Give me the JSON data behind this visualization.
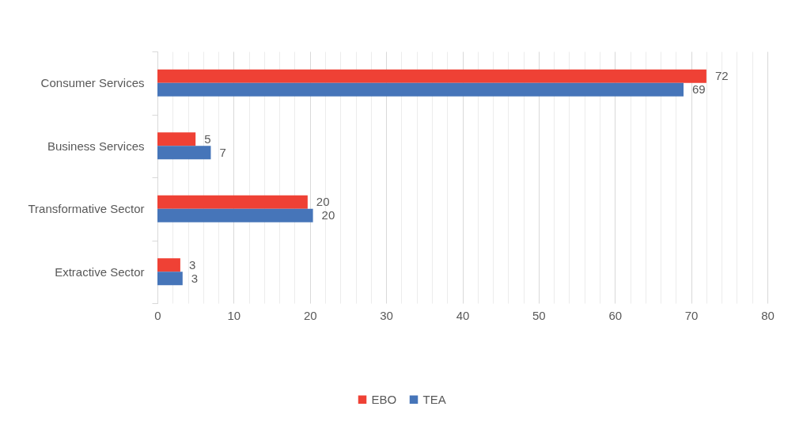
{
  "chart_data": {
    "type": "bar",
    "orientation": "horizontal",
    "categories": [
      "Consumer Services",
      "Business Services",
      "Transformative Sector",
      "Extractive Sector"
    ],
    "series": [
      {
        "name": "EBO",
        "color": "#ef4135",
        "values": [
          72,
          5,
          19.7,
          3
        ],
        "value_labels": [
          "72",
          "5",
          "20",
          "3"
        ]
      },
      {
        "name": "TEA",
        "color": "#4675b9",
        "values": [
          69,
          7,
          20.4,
          3.3
        ],
        "value_labels": [
          "69",
          "7",
          "20",
          "3"
        ]
      }
    ],
    "xlim": [
      0,
      80
    ],
    "xticks": [
      0,
      {
        "value": 2,
        "label": null
      },
      {
        "value": 4,
        "label": null
      },
      {
        "value": 6,
        "label": null
      },
      {
        "value": 8,
        "label": null
      },
      10,
      {
        "value": 12,
        "label": null
      },
      {
        "value": 14,
        "label": null
      },
      {
        "value": 16,
        "label": null
      },
      {
        "value": 18,
        "label": null
      },
      20,
      {
        "value": 22,
        "label": null
      },
      {
        "value": 24,
        "label": null
      },
      {
        "value": 26,
        "label": null
      },
      {
        "value": 28,
        "label": null
      },
      30,
      {
        "value": 32,
        "label": null
      },
      {
        "value": 34,
        "label": null
      },
      {
        "value": 36,
        "label": null
      },
      {
        "value": 38,
        "label": null
      },
      40,
      {
        "value": 42,
        "label": null
      },
      {
        "value": 44,
        "label": null
      },
      {
        "value": 46,
        "label": null
      },
      {
        "value": 48,
        "label": null
      },
      50,
      {
        "value": 52,
        "label": null
      },
      {
        "value": 54,
        "label": null
      },
      {
        "value": 56,
        "label": null
      },
      {
        "value": 58,
        "label": null
      },
      60,
      {
        "value": 62,
        "label": null
      },
      {
        "value": 64,
        "label": null
      },
      {
        "value": 66,
        "label": null
      },
      {
        "value": 68,
        "label": null
      },
      70,
      {
        "value": 72,
        "label": null
      },
      {
        "value": 74,
        "label": null
      },
      {
        "value": 76,
        "label": null
      },
      {
        "value": 78,
        "label": null
      },
      80
    ],
    "grid": "x",
    "legend": "bottom"
  }
}
